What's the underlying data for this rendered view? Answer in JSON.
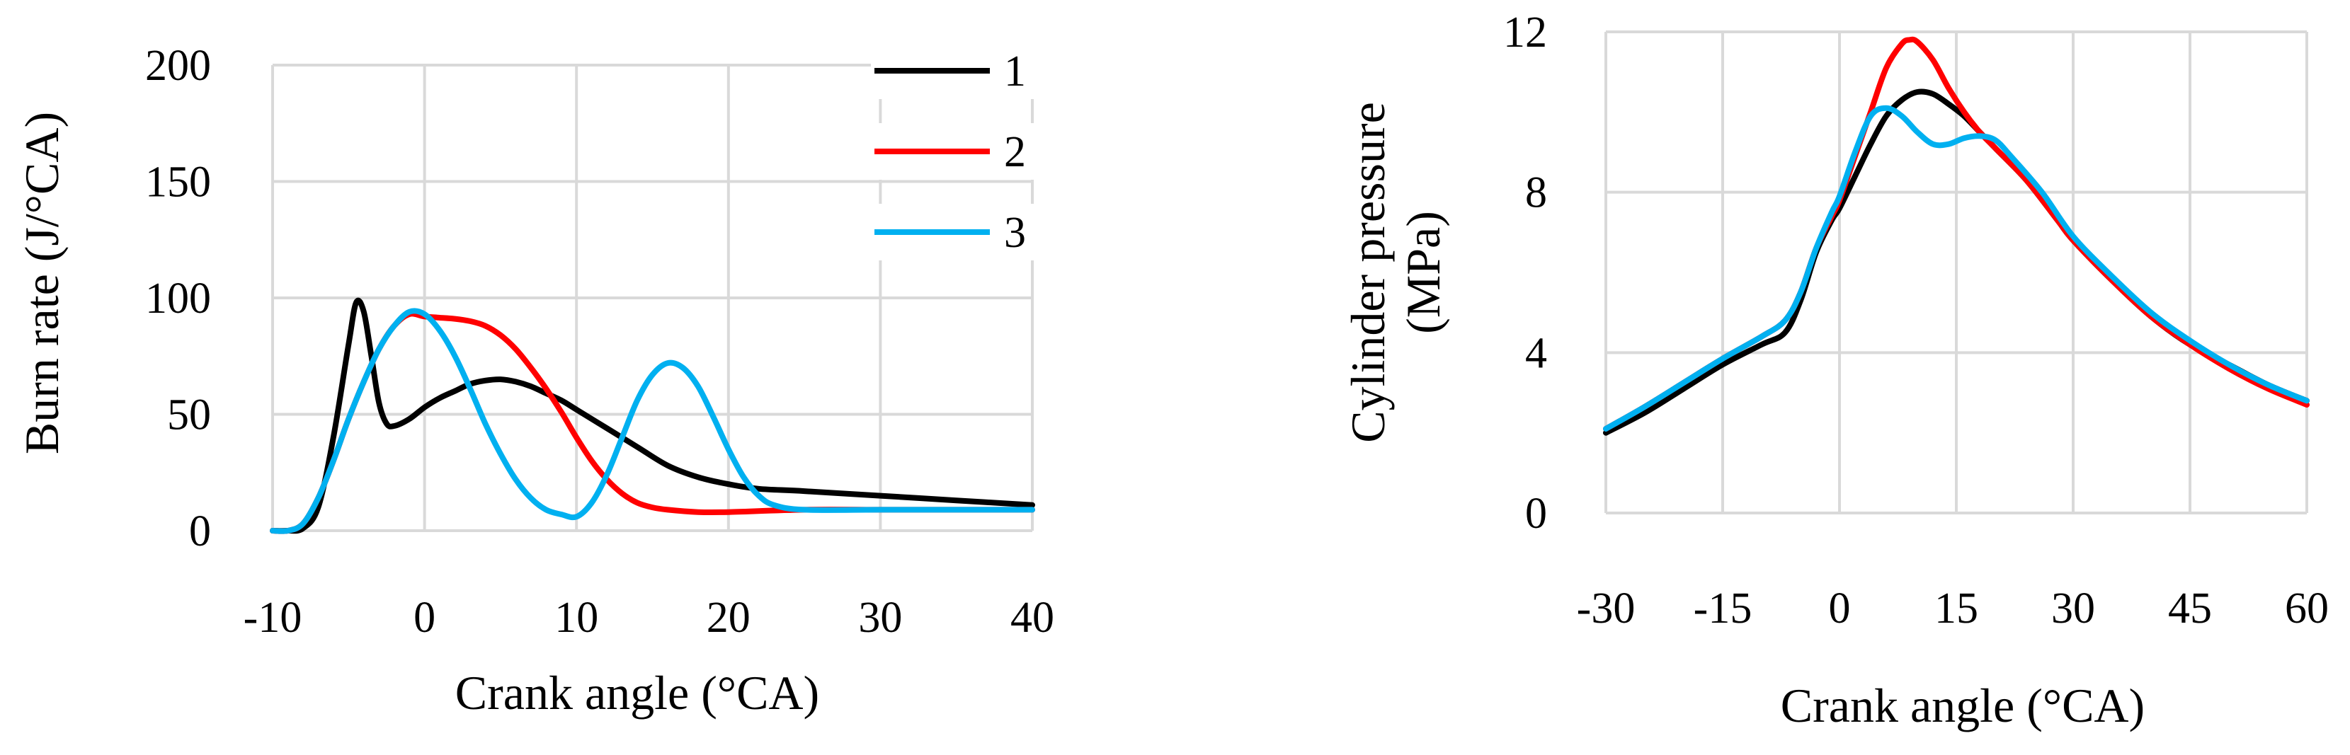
{
  "chart_data": [
    {
      "type": "line",
      "title": "",
      "xlabel": "Crank angle (°CA)",
      "ylabel": "Burn rate (J/°CA)",
      "xlim": [
        -10,
        40
      ],
      "ylim": [
        0,
        200
      ],
      "xticks": [
        -10,
        0,
        10,
        20,
        30,
        40
      ],
      "yticks": [
        0,
        50,
        100,
        150,
        200
      ],
      "grid": "vertical and horizontal",
      "legend": "top-right",
      "series": [
        {
          "name": "1",
          "color": "#000000",
          "points": [
            [
              -10,
              0
            ],
            [
              -9,
              0
            ],
            [
              -8,
              1
            ],
            [
              -7,
              10
            ],
            [
              -6,
              40
            ],
            [
              -5,
              80
            ],
            [
              -4.5,
              98
            ],
            [
              -4,
              94
            ],
            [
              -3.5,
              75
            ],
            [
              -3,
              55
            ],
            [
              -2.5,
              46
            ],
            [
              -2,
              45
            ],
            [
              -1,
              48
            ],
            [
              0,
              53
            ],
            [
              1,
              57
            ],
            [
              2,
              60
            ],
            [
              3,
              63
            ],
            [
              4,
              64.5
            ],
            [
              5,
              65
            ],
            [
              6,
              64
            ],
            [
              7,
              62
            ],
            [
              8,
              59
            ],
            [
              9,
              56
            ],
            [
              10,
              52
            ],
            [
              12,
              44
            ],
            [
              14,
              36
            ],
            [
              16,
              28
            ],
            [
              18,
              23
            ],
            [
              20,
              20
            ],
            [
              22,
              18
            ],
            [
              25,
              17
            ],
            [
              30,
              15
            ],
            [
              35,
              13
            ],
            [
              40,
              11
            ]
          ]
        },
        {
          "name": "2",
          "color": "#ff0000",
          "points": [
            [
              -10,
              0
            ],
            [
              -9,
              0
            ],
            [
              -8,
              3
            ],
            [
              -7,
              14
            ],
            [
              -6,
              30
            ],
            [
              -5,
              48
            ],
            [
              -4,
              64
            ],
            [
              -3,
              78
            ],
            [
              -2,
              88
            ],
            [
              -1,
              93
            ],
            [
              0,
              92
            ],
            [
              1,
              91.5
            ],
            [
              2,
              91
            ],
            [
              3,
              90
            ],
            [
              4,
              88
            ],
            [
              5,
              84
            ],
            [
              6,
              78
            ],
            [
              7,
              70
            ],
            [
              8,
              61
            ],
            [
              9,
              51
            ],
            [
              10,
              40
            ],
            [
              11,
              30
            ],
            [
              12,
              22
            ],
            [
              13,
              16
            ],
            [
              14,
              12
            ],
            [
              15,
              10
            ],
            [
              16,
              9
            ],
            [
              18,
              8
            ],
            [
              20,
              8
            ],
            [
              25,
              9
            ],
            [
              30,
              9
            ],
            [
              35,
              9
            ],
            [
              40,
              9
            ]
          ]
        },
        {
          "name": "3",
          "color": "#00b0f0",
          "points": [
            [
              -10,
              0
            ],
            [
              -9,
              0
            ],
            [
              -8,
              3
            ],
            [
              -7,
              14
            ],
            [
              -6,
              30
            ],
            [
              -5,
              48
            ],
            [
              -4,
              64
            ],
            [
              -3,
              78
            ],
            [
              -2,
              88
            ],
            [
              -1,
              94
            ],
            [
              0,
              93
            ],
            [
              1,
              86
            ],
            [
              2,
              75
            ],
            [
              3,
              61
            ],
            [
              4,
              46
            ],
            [
              5,
              33
            ],
            [
              6,
              22
            ],
            [
              7,
              14
            ],
            [
              8,
              9
            ],
            [
              9,
              7
            ],
            [
              10,
              6
            ],
            [
              11,
              12
            ],
            [
              12,
              24
            ],
            [
              13,
              40
            ],
            [
              14,
              56
            ],
            [
              15,
              67
            ],
            [
              16,
              72
            ],
            [
              17,
              70
            ],
            [
              18,
              62
            ],
            [
              19,
              49
            ],
            [
              20,
              35
            ],
            [
              21,
              23
            ],
            [
              22,
              15
            ],
            [
              23,
              11
            ],
            [
              25,
              9
            ],
            [
              30,
              9
            ],
            [
              35,
              9
            ],
            [
              40,
              9
            ]
          ]
        }
      ]
    },
    {
      "type": "line",
      "title": "",
      "xlabel": "Crank angle (°CA)",
      "ylabel": "Cylinder pressure (MPa)",
      "xlim": [
        -30,
        60
      ],
      "ylim": [
        0,
        12
      ],
      "xticks": [
        -30,
        -15,
        0,
        15,
        30,
        45,
        60
      ],
      "yticks": [
        0,
        4,
        8,
        12
      ],
      "grid": "vertical and horizontal",
      "legend": "none",
      "series": [
        {
          "color": "#000000",
          "points": [
            [
              -30,
              2
            ],
            [
              -25,
              2.5
            ],
            [
              -20,
              3.1
            ],
            [
              -15,
              3.7
            ],
            [
              -10,
              4.2
            ],
            [
              -7,
              4.5
            ],
            [
              -5,
              5.3
            ],
            [
              -3,
              6.5
            ],
            [
              -1,
              7.3
            ],
            [
              0,
              7.6
            ],
            [
              2,
              8.4
            ],
            [
              4,
              9.2
            ],
            [
              6,
              9.9
            ],
            [
              8,
              10.3
            ],
            [
              10,
              10.5
            ],
            [
              12,
              10.45
            ],
            [
              14,
              10.2
            ],
            [
              16,
              9.9
            ],
            [
              18,
              9.5
            ],
            [
              20,
              9.1
            ],
            [
              24,
              8.3
            ],
            [
              28,
              7.3
            ],
            [
              30,
              6.8
            ],
            [
              35,
              5.8
            ],
            [
              40,
              4.9
            ],
            [
              45,
              4.2
            ],
            [
              50,
              3.7
            ],
            [
              55,
              3.2
            ],
            [
              60,
              2.8
            ]
          ]
        },
        {
          "color": "#ff0000",
          "points": [
            [
              -30,
              2.1
            ],
            [
              -25,
              2.65
            ],
            [
              -20,
              3.25
            ],
            [
              -15,
              3.85
            ],
            [
              -10,
              4.4
            ],
            [
              -7,
              4.8
            ],
            [
              -5,
              5.5
            ],
            [
              -3,
              6.6
            ],
            [
              -1,
              7.4
            ],
            [
              0,
              7.8
            ],
            [
              2,
              8.9
            ],
            [
              4,
              10.0
            ],
            [
              6,
              11.1
            ],
            [
              8,
              11.7
            ],
            [
              9,
              11.8
            ],
            [
              10,
              11.75
            ],
            [
              12,
              11.3
            ],
            [
              14,
              10.6
            ],
            [
              16,
              10.0
            ],
            [
              18,
              9.5
            ],
            [
              20,
              9.1
            ],
            [
              24,
              8.3
            ],
            [
              28,
              7.3
            ],
            [
              30,
              6.8
            ],
            [
              35,
              5.8
            ],
            [
              40,
              4.9
            ],
            [
              45,
              4.2
            ],
            [
              50,
              3.6
            ],
            [
              55,
              3.1
            ],
            [
              60,
              2.7
            ]
          ]
        },
        {
          "color": "#00b0f0",
          "points": [
            [
              -30,
              2.1
            ],
            [
              -25,
              2.65
            ],
            [
              -20,
              3.25
            ],
            [
              -15,
              3.85
            ],
            [
              -10,
              4.4
            ],
            [
              -7,
              4.8
            ],
            [
              -5,
              5.5
            ],
            [
              -3,
              6.6
            ],
            [
              -1,
              7.5
            ],
            [
              0,
              7.9
            ],
            [
              2,
              9.0
            ],
            [
              4,
              9.9
            ],
            [
              6,
              10.1
            ],
            [
              8,
              9.9
            ],
            [
              10,
              9.5
            ],
            [
              12,
              9.2
            ],
            [
              14,
              9.2
            ],
            [
              16,
              9.35
            ],
            [
              18,
              9.4
            ],
            [
              20,
              9.3
            ],
            [
              22,
              8.9
            ],
            [
              26,
              8.0
            ],
            [
              30,
              6.9
            ],
            [
              35,
              5.9
            ],
            [
              40,
              5.0
            ],
            [
              45,
              4.3
            ],
            [
              50,
              3.7
            ],
            [
              55,
              3.2
            ],
            [
              60,
              2.8
            ]
          ]
        }
      ]
    }
  ]
}
